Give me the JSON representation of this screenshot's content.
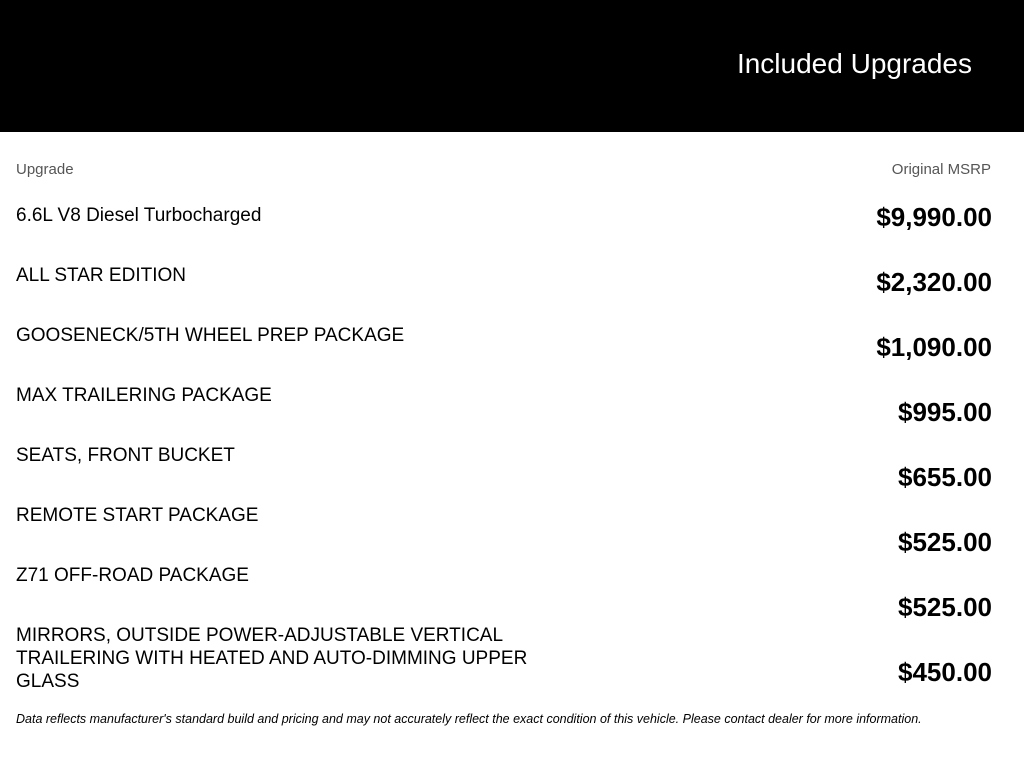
{
  "header": {
    "title": "Included Upgrades"
  },
  "columns": {
    "upgrade": "Upgrade",
    "msrp": "Original MSRP"
  },
  "upgrades": [
    {
      "name": "6.6L V8 Diesel Turbocharged",
      "price": "$9,990.00"
    },
    {
      "name": "ALL STAR EDITION",
      "price": "$2,320.00"
    },
    {
      "name": "GOOSENECK/5TH WHEEL PREP PACKAGE",
      "price": "$1,090.00"
    },
    {
      "name": "MAX TRAILERING PACKAGE",
      "price": "$995.00"
    },
    {
      "name": "SEATS, FRONT BUCKET",
      "price": "$655.00"
    },
    {
      "name": "REMOTE START PACKAGE",
      "price": "$525.00"
    },
    {
      "name": "Z71 OFF-ROAD PACKAGE",
      "price": "$525.00"
    },
    {
      "name": "MIRRORS, OUTSIDE POWER-ADJUSTABLE VERTICAL TRAILERING WITH HEATED AND AUTO-DIMMING UPPER GLASS",
      "price": "$450.00"
    }
  ],
  "footer": "Data reflects manufacturer's standard build and pricing and may not accurately reflect the exact condition of this vehicle. Please contact dealer for more information."
}
